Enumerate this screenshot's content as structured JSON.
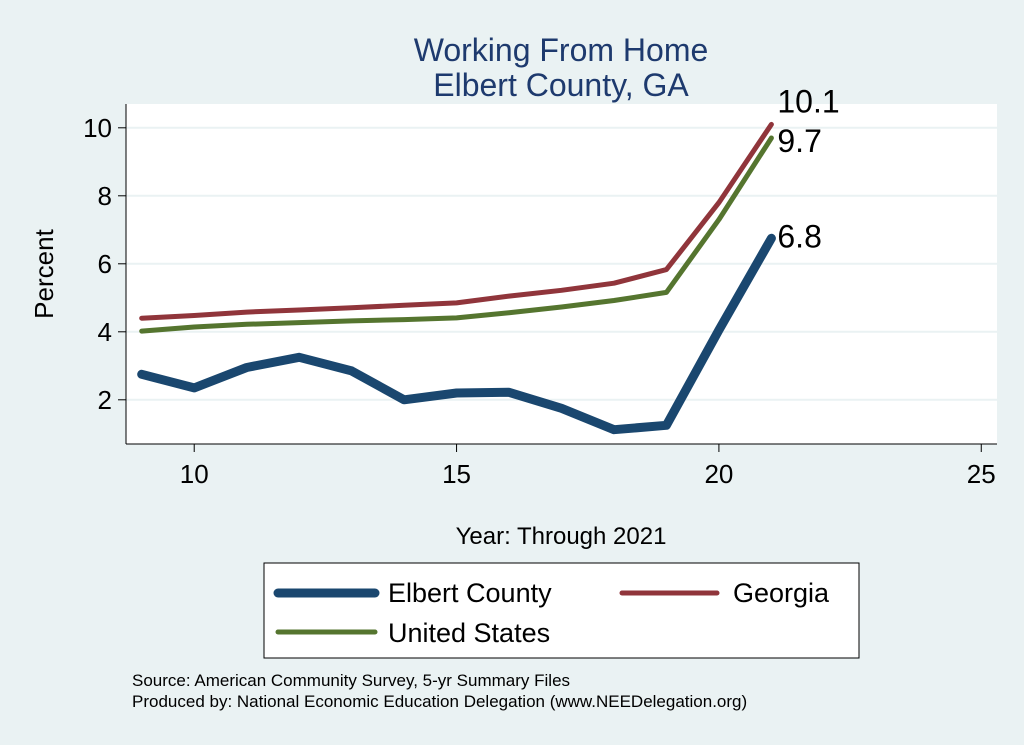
{
  "chart_data": {
    "type": "line",
    "title": "Working From Home",
    "subtitle": "Elbert County, GA",
    "xlabel": "Year: Through 2021",
    "ylabel": "Percent",
    "xlim": [
      8.7,
      25.3
    ],
    "ylim": [
      0.7,
      10.7
    ],
    "x_ticks": [
      10,
      15,
      20,
      25
    ],
    "y_ticks": [
      2,
      4,
      6,
      8,
      10
    ],
    "grid": true,
    "legend_position": "bottom",
    "series": [
      {
        "name": "Elbert County",
        "color": "#1a476f",
        "x": [
          9,
          10,
          11,
          12,
          13,
          14,
          15,
          16,
          17,
          18,
          19,
          20,
          21
        ],
        "values": [
          2.75,
          2.35,
          2.95,
          3.25,
          2.85,
          2.0,
          2.2,
          2.22,
          1.75,
          1.12,
          1.25,
          4.05,
          6.75
        ],
        "end_label": "6.8"
      },
      {
        "name": "Georgia",
        "color": "#90353b",
        "x": [
          9,
          10,
          11,
          12,
          13,
          14,
          15,
          16,
          17,
          18,
          19,
          20,
          21
        ],
        "values": [
          4.4,
          4.48,
          4.58,
          4.64,
          4.71,
          4.78,
          4.85,
          5.05,
          5.22,
          5.43,
          5.83,
          7.8,
          10.1
        ],
        "end_label": "10.1"
      },
      {
        "name": "United States",
        "color": "#55752f",
        "x": [
          9,
          10,
          11,
          12,
          13,
          14,
          15,
          16,
          17,
          18,
          19,
          20,
          21
        ],
        "values": [
          4.02,
          4.14,
          4.22,
          4.27,
          4.32,
          4.36,
          4.41,
          4.56,
          4.73,
          4.92,
          5.16,
          7.3,
          9.7
        ],
        "end_label": "9.7"
      }
    ]
  },
  "source": {
    "line1": "Source: American Community Survey, 5-yr Summary Files",
    "line2": "Produced by: National Economic Education Delegation (www.NEEDelegation.org)"
  }
}
